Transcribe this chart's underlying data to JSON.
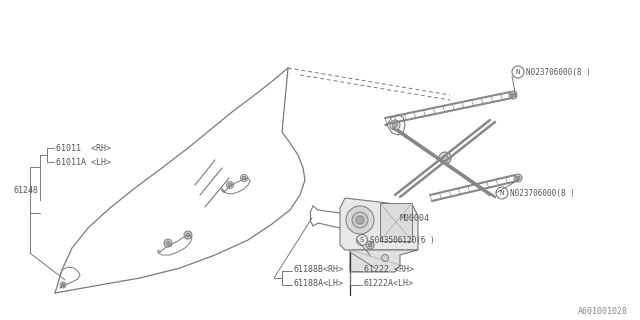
{
  "bg_color": "#ffffff",
  "line_color": "#7a7a7a",
  "text_color": "#555555",
  "fig_width": 6.4,
  "fig_height": 3.2,
  "diagram_code": "A601001028",
  "labels": {
    "61011_RH": "61011  <RH>",
    "61011A_LH": "61011A <LH>",
    "61248": "61248",
    "N023706000_8_top": "N023706000(8 )",
    "N023706000_8_mid": "N023706000(8 )",
    "M00004": "M00004",
    "S043506120_6": "S043506120(6 )",
    "61188B_RH": "61188B<RH>",
    "61188A_LH": "61188A<LH>",
    "61222_RH": "61222 <RH>",
    "61222A_LH": "61222A<LH>"
  }
}
